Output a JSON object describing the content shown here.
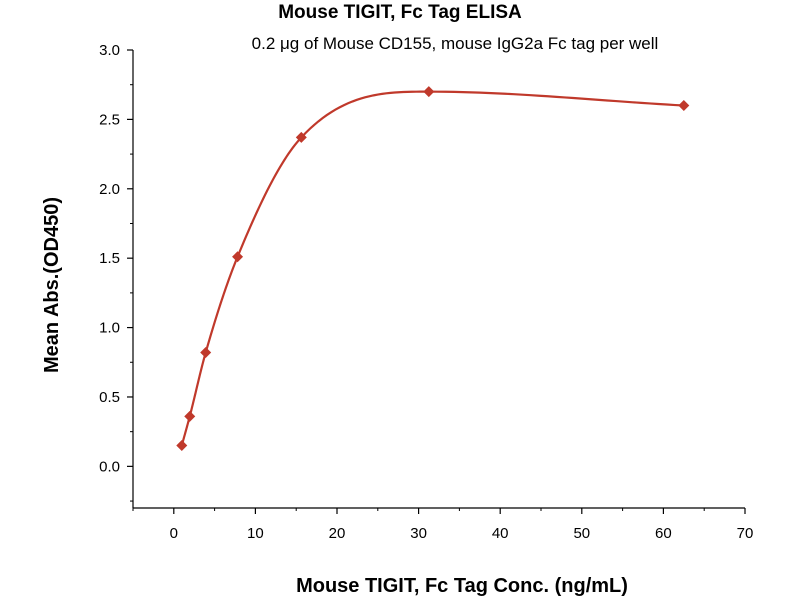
{
  "chart_data": {
    "type": "scatter",
    "title": "Mouse TIGIT, Fc Tag ELISA",
    "subtitle": "0.2 μg of Mouse CD155, mouse IgG2a Fc tag per well",
    "xlabel": "Mouse TIGIT, Fc Tag Conc. (ng/mL)",
    "ylabel": "Mean Abs.(OD450)",
    "xlim": [
      -5,
      70
    ],
    "ylim": [
      -0.3,
      3.0
    ],
    "xticks": [
      0,
      10,
      20,
      30,
      40,
      50,
      60,
      70
    ],
    "yticks": [
      0.0,
      0.5,
      1.0,
      1.5,
      2.0,
      2.5,
      3.0
    ],
    "x": [
      0.977,
      1.953,
      3.906,
      7.813,
      15.625,
      31.25,
      62.5
    ],
    "y": [
      0.15,
      0.36,
      0.82,
      1.51,
      2.37,
      2.7,
      2.6
    ],
    "fit_curve": true,
    "grid": false,
    "marker": "diamond",
    "color": "#c0392b"
  }
}
